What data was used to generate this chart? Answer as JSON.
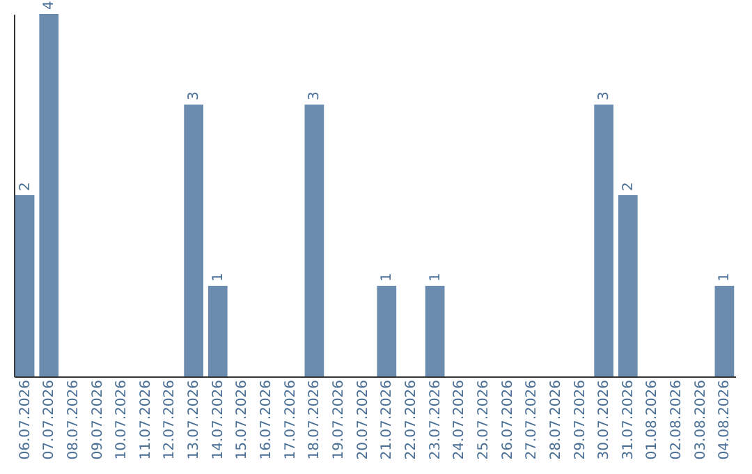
{
  "chart_data": {
    "type": "bar",
    "categories": [
      "06.07.2026",
      "07.07.2026",
      "08.07.2026",
      "09.07.2026",
      "10.07.2026",
      "11.07.2026",
      "12.07.2026",
      "13.07.2026",
      "14.07.2026",
      "15.07.2026",
      "16.07.2026",
      "17.07.2026",
      "18.07.2026",
      "19.07.2026",
      "20.07.2026",
      "21.07.2026",
      "22.07.2026",
      "23.07.2026",
      "24.07.2026",
      "25.07.2026",
      "26.07.2026",
      "27.07.2026",
      "28.07.2026",
      "29.07.2026",
      "30.07.2026",
      "31.07.2026",
      "01.08.2026",
      "02.08.2026",
      "03.08.2026",
      "04.08.2026"
    ],
    "values": [
      2,
      4,
      0,
      0,
      0,
      0,
      0,
      3,
      1,
      0,
      0,
      0,
      3,
      0,
      0,
      1,
      0,
      1,
      0,
      0,
      0,
      0,
      0,
      0,
      3,
      2,
      0,
      0,
      0,
      1
    ],
    "value_labels": [
      "2",
      "4",
      null,
      null,
      null,
      null,
      null,
      "3",
      "1",
      null,
      null,
      null,
      "3",
      null,
      null,
      "1",
      null,
      "1",
      null,
      null,
      null,
      null,
      null,
      null,
      "3",
      "2",
      null,
      null,
      null,
      "1"
    ],
    "color": "#6b8cae",
    "tick_labels": "x"
  }
}
